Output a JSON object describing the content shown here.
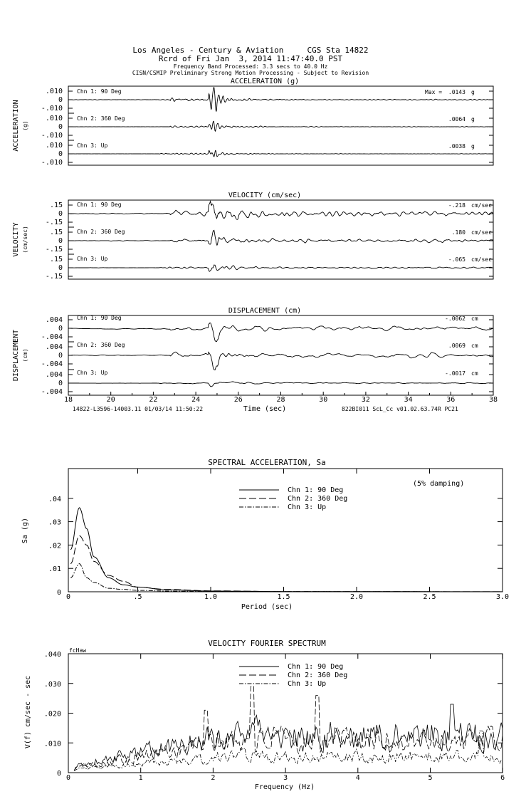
{
  "header": {
    "line1": "Los Angeles - Century & Aviation     CGS Sta 14822",
    "line2": "Rcrd of Fri Jan  3, 2014 11:47:40.0 PST",
    "line3": "Frequency Band Processed: 3.3 secs to 40.0 Hz",
    "line4": "CISN/CSMIP Preliminary Strong Motion Processing - Subject to Revision"
  },
  "time_history": {
    "time_ticks": [
      "18",
      "20",
      "22",
      "24",
      "26",
      "28",
      "30",
      "32",
      "34",
      "36",
      "38"
    ],
    "xlabel": "Time (sec)",
    "footer_left": "14822-L3596-14003.11 01/03/14 11:50:22",
    "footer_right": "822BI011  ScL_Cc  v01.02.63.74R PC21",
    "panels": [
      {
        "title": "ACCELERATION (g)",
        "ylabel": "ACCELERATION",
        "yunit": "(g)",
        "ticks": [
          ".010",
          "0",
          "-.010"
        ],
        "max_label": "Max =",
        "channels": [
          {
            "label": "Chn 1: 90 Deg",
            "peak": ".0143",
            "unit": "g"
          },
          {
            "label": "Chn 2: 360 Deg",
            "peak": ".0064",
            "unit": "g"
          },
          {
            "label": "Chn 3: Up",
            "peak": ".0038",
            "unit": "g"
          }
        ]
      },
      {
        "title": "VELOCITY (cm/sec)",
        "ylabel": "VELOCITY",
        "yunit": "(cm/sec)",
        "ticks": [
          ".15",
          "0",
          "-.15"
        ],
        "channels": [
          {
            "label": "Chn 1: 90 Deg",
            "peak": "-.218",
            "unit": "cm/sec"
          },
          {
            "label": "Chn 2: 360 Deg",
            "peak": ".180",
            "unit": "cm/sec"
          },
          {
            "label": "Chn 3: Up",
            "peak": "-.065",
            "unit": "cm/sec"
          }
        ]
      },
      {
        "title": "DISPLACEMENT (cm)",
        "ylabel": "DISPLACEMENT",
        "yunit": "(cm)",
        "ticks": [
          ".004",
          "0",
          "-.004"
        ],
        "channels": [
          {
            "label": "Chn 1: 90 Deg",
            "peak": "-.0062",
            "unit": "cm"
          },
          {
            "label": "Chn 2: 360 Deg",
            "peak": ".0069",
            "unit": "cm"
          },
          {
            "label": "Chn 3: Up",
            "peak": "-.0017",
            "unit": "cm"
          }
        ]
      }
    ]
  },
  "sa": {
    "title": "SPECTRAL ACCELERATION, Sa",
    "note": "(5% damping)",
    "ylabel": "Sa (g)",
    "xlabel": "Period (sec)",
    "xticks": [
      "0",
      ".5",
      "1.0",
      "1.5",
      "2.0",
      "2.5",
      "3.0"
    ],
    "yticks": [
      "0",
      ".01",
      ".02",
      ".03",
      ".04"
    ],
    "legend": [
      "Chn 1: 90 Deg",
      "Chn 2: 360 Deg",
      "Chn 3: Up"
    ]
  },
  "fourier": {
    "title": "VELOCITY FOURIER SPECTRUM",
    "corner_label": "fcHaw",
    "ylabel": "V(f)  cm/sec - sec",
    "xlabel": "Frequency (Hz)",
    "xticks": [
      "0",
      "1",
      "2",
      "3",
      "4",
      "5",
      "6"
    ],
    "yticks": [
      "0",
      ".010",
      ".020",
      ".030",
      ".040"
    ],
    "legend": [
      "Chn 1: 90 Deg",
      "Chn 2: 360 Deg",
      "Chn 3: Up"
    ]
  },
  "chart_data": [
    {
      "type": "line",
      "title": "ACCELERATION (g)",
      "xlabel": "Time (sec)",
      "xlim": [
        18,
        38
      ],
      "ylim": [
        -0.01,
        0.01
      ],
      "series": [
        {
          "name": "Chn 1: 90 Deg",
          "peak": 0.0143,
          "peak_time": 24.8
        },
        {
          "name": "Chn 2: 360 Deg",
          "peak": 0.0064,
          "peak_time": 24.8
        },
        {
          "name": "Chn 3: Up",
          "peak": 0.0038,
          "peak_time": 24.8
        }
      ]
    },
    {
      "type": "line",
      "title": "VELOCITY (cm/sec)",
      "xlabel": "Time (sec)",
      "xlim": [
        18,
        38
      ],
      "ylim": [
        -0.15,
        0.15
      ],
      "series": [
        {
          "name": "Chn 1: 90 Deg",
          "peak": -0.218,
          "peak_time": 24.9
        },
        {
          "name": "Chn 2: 360 Deg",
          "peak": 0.18,
          "peak_time": 24.8
        },
        {
          "name": "Chn 3: Up",
          "peak": -0.065,
          "peak_time": 24.8
        }
      ]
    },
    {
      "type": "line",
      "title": "DISPLACEMENT (cm)",
      "xlabel": "Time (sec)",
      "xlim": [
        18,
        38
      ],
      "ylim": [
        -0.004,
        0.004
      ],
      "series": [
        {
          "name": "Chn 1: 90 Deg",
          "peak": -0.0062,
          "peak_time": 24.8
        },
        {
          "name": "Chn 2: 360 Deg",
          "peak": 0.0069,
          "peak_time": 24.8
        },
        {
          "name": "Chn 3: Up",
          "peak": -0.0017,
          "peak_time": 24.9
        }
      ]
    },
    {
      "type": "line",
      "title": "SPECTRAL ACCELERATION, Sa",
      "xlabel": "Period (sec)",
      "ylabel": "Sa (g)",
      "xlim": [
        0,
        3
      ],
      "ylim": [
        0,
        0.045
      ],
      "x": [
        0.04,
        0.1,
        0.15,
        0.2,
        0.3,
        0.4,
        0.5,
        0.7,
        1.0,
        1.5,
        3.0
      ],
      "series": [
        {
          "name": "Chn 1: 90 Deg",
          "values": [
            0.018,
            0.036,
            0.027,
            0.015,
            0.006,
            0.003,
            0.002,
            0.0008,
            0.0003,
            0.0001,
            3e-05
          ]
        },
        {
          "name": "Chn 2: 360 Deg",
          "values": [
            0.012,
            0.024,
            0.02,
            0.013,
            0.007,
            0.0045,
            0.002,
            0.001,
            0.0004,
            0.0001,
            3e-05
          ]
        },
        {
          "name": "Chn 3: Up",
          "values": [
            0.006,
            0.012,
            0.006,
            0.004,
            0.0015,
            0.001,
            0.0006,
            0.0003,
            0.0001,
            5e-05,
            1e-05
          ]
        }
      ]
    },
    {
      "type": "line",
      "title": "VELOCITY FOURIER SPECTRUM",
      "xlabel": "Frequency (Hz)",
      "ylabel": "V(f)  cm/sec - sec",
      "xlim": [
        0,
        6
      ],
      "ylim": [
        0,
        0.04
      ],
      "series": [
        {
          "name": "Chn 1: 90 Deg",
          "typical_level_above_2hz": 0.014,
          "max": 0.023,
          "max_freq": 5.3
        },
        {
          "name": "Chn 2: 360 Deg",
          "typical_level_above_2hz": 0.012,
          "max": 0.029,
          "max_freq": 2.55
        },
        {
          "name": "Chn 3: Up",
          "typical_level_above_2hz": 0.006,
          "max": 0.014,
          "max_freq": 5.7
        }
      ]
    }
  ]
}
